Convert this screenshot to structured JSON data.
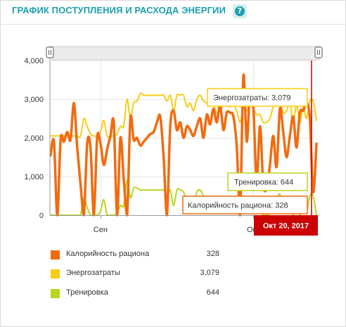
{
  "header": {
    "title": "ГРАФИК ПОСТУПЛЕНИЯ И РАСХОДА ЭНЕРГИИ",
    "help_icon": "question-icon",
    "help_glyph": "?"
  },
  "colors": {
    "calories": "#f26b0f",
    "energy": "#f7cd14",
    "training": "#b7d61d",
    "marker": "#cc0000",
    "title": "#1a9fb0"
  },
  "chart_data": {
    "type": "line",
    "y_ticks": [
      "4,000",
      "3,000",
      "2,000",
      "1,000",
      "0"
    ],
    "y_tick_values": [
      4000,
      3000,
      2000,
      1000,
      0
    ],
    "ylim": [
      0,
      4000
    ],
    "x_ticks": [
      "Сен",
      "Окт"
    ],
    "x_tick_days": [
      15,
      61
    ],
    "day_range": [
      0,
      80
    ],
    "grid": true,
    "series": [
      {
        "name": "Калорийность рациона",
        "key": "calories",
        "values": [
          1550,
          1900,
          0,
          1950,
          1900,
          2150,
          1950,
          2900,
          1750,
          800,
          0,
          1850,
          1750,
          0,
          2000,
          1850,
          1300,
          1700,
          2050,
          2400,
          0,
          2000,
          950,
          0,
          2500,
          1950,
          2000,
          1800,
          1900,
          2000,
          2100,
          2150,
          2400,
          2550,
          1500,
          0,
          2300,
          2700,
          2200,
          2400,
          2000,
          2300,
          2200,
          2050,
          2300,
          2500,
          2000,
          2600,
          2350,
          2750,
          2400,
          2850,
          2200,
          2650,
          2650,
          2550,
          1800,
          0,
          3600,
          1900,
          3200,
          2800,
          850,
          2300,
          800,
          700,
          1300,
          2050,
          1250,
          2750,
          2150,
          1500,
          2050,
          2550,
          1750,
          2650,
          2700,
          2900,
          2500,
          600,
          1850
        ]
      },
      {
        "name": "Энергозатраты",
        "key": "energy",
        "values": [
          2050,
          2050,
          2050,
          2050,
          2050,
          2050,
          2050,
          2050,
          2050,
          2050,
          2500,
          2300,
          2100,
          2050,
          2050,
          2150,
          2450,
          2050,
          2050,
          2050,
          2100,
          2300,
          2300,
          3000,
          2500,
          2900,
          2950,
          3150,
          3100,
          3100,
          3100,
          3100,
          3100,
          3100,
          3100,
          2950,
          3100,
          2700,
          3100,
          3100,
          3100,
          2800,
          2900,
          2700,
          3000,
          3100,
          2950,
          2900,
          2850,
          2850,
          2650,
          2700,
          2850,
          2850,
          2800,
          2850,
          2700,
          2400,
          2750,
          2700,
          2850,
          2750,
          2600,
          2600,
          2400,
          2400,
          2500,
          2800,
          2850,
          3000,
          2650,
          2700,
          2900,
          2400,
          2850,
          2400,
          2800,
          2500,
          2950,
          2950,
          2450
        ]
      },
      {
        "name": "Тренировка",
        "key": "training",
        "values": [
          0,
          0,
          0,
          0,
          0,
          0,
          0,
          0,
          0,
          0,
          450,
          200,
          0,
          0,
          0,
          100,
          400,
          0,
          0,
          0,
          50,
          250,
          250,
          900,
          450,
          700,
          700,
          650,
          650,
          650,
          650,
          650,
          650,
          650,
          650,
          500,
          650,
          250,
          650,
          650,
          600,
          350,
          450,
          250,
          600,
          650,
          500,
          400,
          400,
          400,
          200,
          250,
          400,
          400,
          350,
          400,
          250,
          0,
          300,
          250,
          400,
          300,
          150,
          150,
          0,
          0,
          50,
          350,
          400,
          550,
          200,
          250,
          450,
          0,
          400,
          0,
          350,
          50,
          500,
          500,
          0
        ]
      }
    ]
  },
  "tooltips": {
    "energy": "Энергозатраты: 3,079",
    "training": "Тренировка: 644",
    "calories": "Калорийность рациона: 328",
    "date": "Окт 20, 2017"
  },
  "range_handles": {
    "left_label": "range-handle-left",
    "right_label": "range-handle-right"
  },
  "legend": [
    {
      "key": "calories",
      "name": "Калорийность рациона",
      "value": "328"
    },
    {
      "key": "energy",
      "name": "Энергозатраты",
      "value": "3,079"
    },
    {
      "key": "training",
      "name": "Тренировка",
      "value": "644"
    }
  ]
}
